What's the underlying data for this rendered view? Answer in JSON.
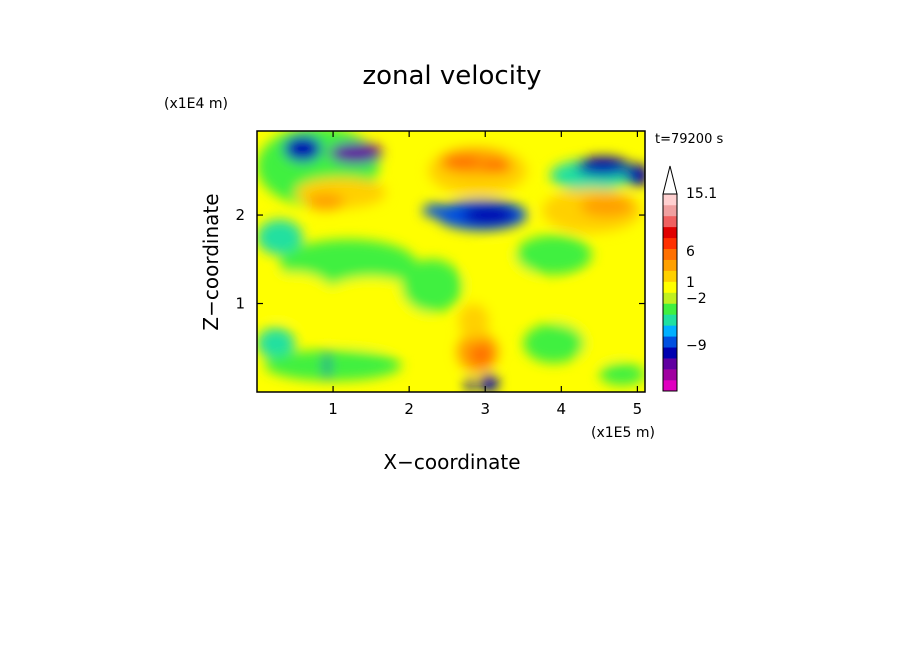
{
  "chart_data": {
    "type": "heatmap",
    "title": "zonal velocity",
    "xlabel": "X−coordinate",
    "ylabel": "Z−coordinate",
    "x_unit": "(x1E5 m)",
    "y_unit": "(x1E4 m)",
    "time_label": "t=79200 s",
    "xlim": [
      0,
      5.1
    ],
    "ylim": [
      0,
      2.95
    ],
    "x_ticks": [
      1,
      2,
      3,
      4,
      5
    ],
    "y_ticks": [
      1,
      2
    ],
    "colorbar": {
      "labels": [
        {
          "value": 15.1,
          "text": "15.1"
        },
        {
          "value": 6,
          "text": "6"
        },
        {
          "value": 1,
          "text": "1"
        },
        {
          "value": -2,
          "text": "−2"
        },
        {
          "value": -9,
          "text": "−9"
        }
      ],
      "colors": [
        "#e000c0",
        "#a000a0",
        "#6000a0",
        "#0000b0",
        "#0050e0",
        "#00b0ff",
        "#20e0a0",
        "#40f040",
        "#c0f020",
        "#ffff00",
        "#ffd000",
        "#ffa000",
        "#ff7000",
        "#ff3000",
        "#e00000",
        "#f06060",
        "#f0a0a0",
        "#ffd0d0"
      ],
      "extend_max": true
    },
    "fields": [
      {
        "x": 0.8,
        "z": 2.55,
        "w": 1.6,
        "h": 0.9,
        "level": 7
      },
      {
        "x": 0.6,
        "z": 2.75,
        "w": 0.5,
        "h": 0.3,
        "level": 3
      },
      {
        "x": 1.3,
        "z": 2.7,
        "w": 0.7,
        "h": 0.25,
        "level": 2
      },
      {
        "x": 1.1,
        "z": 2.25,
        "w": 1.2,
        "h": 0.35,
        "level": 10
      },
      {
        "x": 0.9,
        "z": 2.15,
        "w": 0.5,
        "h": 0.2,
        "level": 11
      },
      {
        "x": 2.9,
        "z": 2.5,
        "w": 1.3,
        "h": 0.55,
        "level": 10
      },
      {
        "x": 2.85,
        "z": 2.6,
        "w": 0.9,
        "h": 0.3,
        "level": 11
      },
      {
        "x": 2.7,
        "z": 2.6,
        "w": 0.5,
        "h": 0.15,
        "level": 12
      },
      {
        "x": 3.15,
        "z": 2.55,
        "w": 0.4,
        "h": 0.15,
        "level": 12
      },
      {
        "x": 2.95,
        "z": 2.0,
        "w": 1.2,
        "h": 0.35,
        "level": 4
      },
      {
        "x": 3.05,
        "z": 2.0,
        "w": 0.7,
        "h": 0.22,
        "level": 3
      },
      {
        "x": 2.35,
        "z": 2.05,
        "w": 0.35,
        "h": 0.15,
        "level": 4
      },
      {
        "x": 4.4,
        "z": 2.45,
        "w": 1.1,
        "h": 0.35,
        "level": 6
      },
      {
        "x": 4.55,
        "z": 2.55,
        "w": 0.7,
        "h": 0.22,
        "level": 3
      },
      {
        "x": 5.0,
        "z": 2.45,
        "w": 0.3,
        "h": 0.25,
        "level": 3
      },
      {
        "x": 4.4,
        "z": 2.05,
        "w": 1.3,
        "h": 0.5,
        "level": 10
      },
      {
        "x": 4.6,
        "z": 2.1,
        "w": 0.7,
        "h": 0.25,
        "level": 11
      },
      {
        "x": 0.3,
        "z": 1.75,
        "w": 0.6,
        "h": 0.4,
        "level": 6
      },
      {
        "x": 1.2,
        "z": 1.45,
        "w": 1.8,
        "h": 0.55,
        "level": 7
      },
      {
        "x": 0.5,
        "z": 1.1,
        "w": 1.0,
        "h": 0.5,
        "level": 9
      },
      {
        "x": 1.5,
        "z": 0.9,
        "w": 1.6,
        "h": 0.8,
        "level": 9
      },
      {
        "x": 0.25,
        "z": 0.55,
        "w": 0.5,
        "h": 0.35,
        "level": 6
      },
      {
        "x": 1.0,
        "z": 0.3,
        "w": 1.8,
        "h": 0.35,
        "level": 7
      },
      {
        "x": 2.3,
        "z": 1.2,
        "w": 0.8,
        "h": 0.6,
        "level": 7
      },
      {
        "x": 3.2,
        "z": 1.25,
        "w": 0.9,
        "h": 0.7,
        "level": 9
      },
      {
        "x": 3.9,
        "z": 1.55,
        "w": 1.0,
        "h": 0.45,
        "level": 7
      },
      {
        "x": 4.5,
        "z": 0.8,
        "w": 1.2,
        "h": 0.9,
        "level": 9
      },
      {
        "x": 3.9,
        "z": 0.55,
        "w": 0.8,
        "h": 0.45,
        "level": 7
      },
      {
        "x": 4.8,
        "z": 0.2,
        "w": 0.6,
        "h": 0.25,
        "level": 7
      },
      {
        "x": 2.9,
        "z": 0.45,
        "w": 0.55,
        "h": 0.45,
        "level": 11
      },
      {
        "x": 2.95,
        "z": 0.42,
        "w": 0.3,
        "h": 0.25,
        "level": 12
      },
      {
        "x": 3.05,
        "z": 0.1,
        "w": 0.25,
        "h": 0.2,
        "level": 3
      },
      {
        "x": 2.8,
        "z": 0.08,
        "w": 0.12,
        "h": 0.16,
        "level": 3
      },
      {
        "x": 0.92,
        "z": 0.3,
        "w": 0.06,
        "h": 0.35,
        "level": 3
      },
      {
        "x": 2.85,
        "z": 0.8,
        "w": 0.4,
        "h": 0.4,
        "level": 10
      }
    ]
  }
}
